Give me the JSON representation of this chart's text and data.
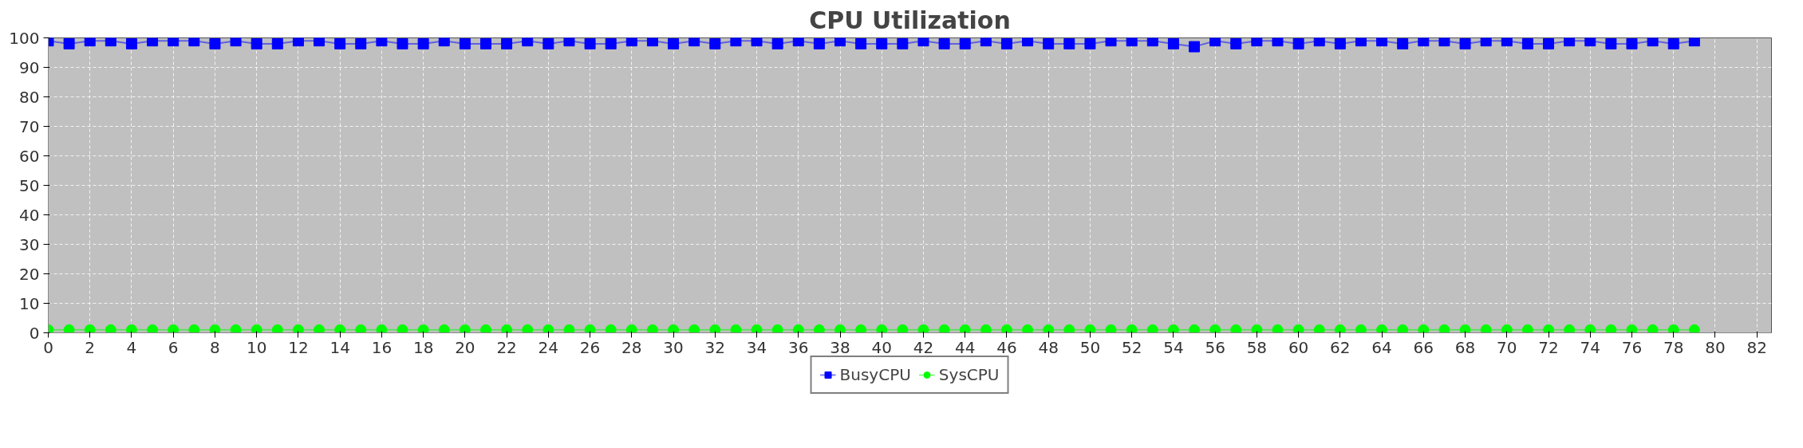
{
  "chart_data": {
    "type": "line",
    "title": "CPU Utilization",
    "x": [
      0,
      1,
      2,
      3,
      4,
      5,
      6,
      7,
      8,
      9,
      10,
      11,
      12,
      13,
      14,
      15,
      16,
      17,
      18,
      19,
      20,
      21,
      22,
      23,
      24,
      25,
      26,
      27,
      28,
      29,
      30,
      31,
      32,
      33,
      34,
      35,
      36,
      37,
      38,
      39,
      40,
      41,
      42,
      43,
      44,
      45,
      46,
      47,
      48,
      49,
      50,
      51,
      52,
      53,
      54,
      55,
      56,
      57,
      58,
      59,
      60,
      61,
      62,
      63,
      64,
      65,
      66,
      67,
      68,
      69,
      70,
      71,
      72,
      73,
      74,
      75,
      76,
      77,
      78,
      79
    ],
    "series": [
      {
        "name": "BusyCPU",
        "color": "#0000ff",
        "marker": "square",
        "values": [
          99,
          98,
          99,
          99,
          98,
          99,
          99,
          99,
          98,
          99,
          98,
          98,
          99,
          99,
          98,
          98,
          99,
          98,
          98,
          99,
          98,
          98,
          98,
          99,
          98,
          99,
          98,
          98,
          99,
          99,
          98,
          99,
          98,
          99,
          99,
          98,
          99,
          98,
          99,
          98,
          98,
          98,
          99,
          98,
          98,
          99,
          98,
          99,
          98,
          98,
          98,
          99,
          99,
          99,
          98,
          97,
          99,
          98,
          99,
          99,
          98,
          99,
          98,
          99,
          99,
          98,
          99,
          99,
          98,
          99,
          99,
          98,
          98,
          99,
          99,
          98,
          98,
          99,
          98,
          99
        ]
      },
      {
        "name": "SysCPU",
        "color": "#00ff00",
        "marker": "circle",
        "values": [
          1,
          1,
          1,
          1,
          1,
          1,
          1,
          1,
          1,
          1,
          1,
          1,
          1,
          1,
          1,
          1,
          1,
          1,
          1,
          1,
          1,
          1,
          1,
          1,
          1,
          1,
          1,
          1,
          1,
          1,
          1,
          1,
          1,
          1,
          1,
          1,
          1,
          1,
          1,
          1,
          1,
          1,
          1,
          1,
          1,
          1,
          1,
          1,
          1,
          1,
          1,
          1,
          1,
          1,
          1,
          1,
          1,
          1,
          1,
          1,
          1,
          1,
          1,
          1,
          1,
          1,
          1,
          1,
          1,
          1,
          1,
          1,
          1,
          1,
          1,
          1,
          1,
          1,
          1,
          1
        ]
      }
    ],
    "xlim": [
      0,
      82.7
    ],
    "xticks": [
      0,
      2,
      4,
      6,
      8,
      10,
      12,
      14,
      16,
      18,
      20,
      22,
      24,
      26,
      28,
      30,
      32,
      34,
      36,
      38,
      40,
      42,
      44,
      46,
      48,
      50,
      52,
      54,
      56,
      58,
      60,
      62,
      64,
      66,
      68,
      70,
      72,
      74,
      76,
      78,
      80,
      82
    ],
    "ylim": [
      0,
      100
    ],
    "yticks": [
      0,
      10,
      20,
      30,
      40,
      50,
      60,
      70,
      80,
      90,
      100
    ],
    "grid": true,
    "legend": "bottom",
    "line_style": "solid"
  }
}
